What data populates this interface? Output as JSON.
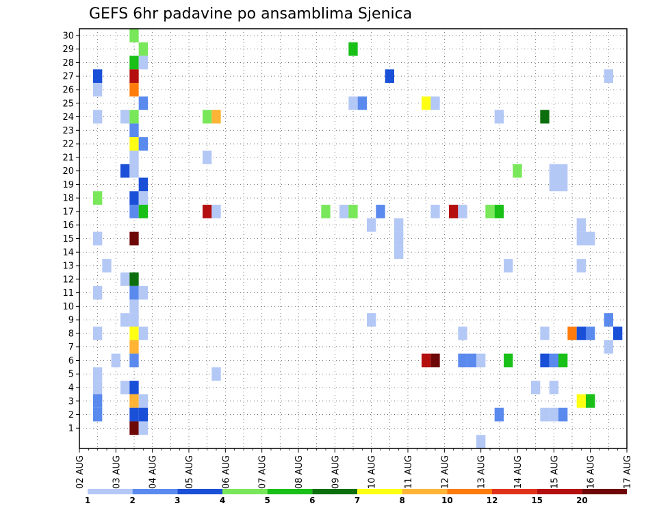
{
  "chart_data": {
    "type": "heatmap",
    "title": "GEFS 6hr padavine po ansamblima Sjenica",
    "xlabel": "",
    "ylabel": "",
    "y_range": [
      1,
      30
    ],
    "y_ticks": [
      "1",
      "2",
      "3",
      "4",
      "5",
      "6",
      "7",
      "8",
      "9",
      "10",
      "11",
      "12",
      "13",
      "14",
      "15",
      "16",
      "17",
      "18",
      "19",
      "20",
      "21",
      "22",
      "23",
      "24",
      "25",
      "26",
      "27",
      "28",
      "29",
      "30"
    ],
    "x_range": [
      0,
      15
    ],
    "x_ticks": [
      "02 AUG",
      "03 AUG",
      "04 AUG",
      "05 AUG",
      "06 AUG",
      "07 AUG",
      "08 AUG",
      "09 AUG",
      "10 AUG",
      "11 AUG",
      "12 AUG",
      "13 AUG",
      "14 AUG",
      "15 AUG",
      "16 AUG",
      "17 AUG"
    ],
    "x_step_per_day": 4,
    "grid": true,
    "colorbar": {
      "labels": [
        "1",
        "2",
        "3",
        "4",
        "5",
        "6",
        "7",
        "8",
        "10",
        "12",
        "15",
        "20"
      ],
      "colors": [
        "#b4c8f6",
        "#5a8aee",
        "#1a4fd8",
        "#78e85a",
        "#18c018",
        "#0c6e0c",
        "#ffff14",
        "#ffb436",
        "#ff7c0c",
        "#e0321a",
        "#b40e0e",
        "#6e0808"
      ]
    },
    "cells_description": "x = time step index (4 per day, 0 at 02 AUG 00Z), y = ensemble member, v = 6hr precipitation class",
    "cells": [
      {
        "x": 2,
        "y": 27,
        "v": 3
      },
      {
        "x": 2,
        "y": 26,
        "v": 1
      },
      {
        "x": 2,
        "y": 24,
        "v": 1
      },
      {
        "x": 2,
        "y": 18,
        "v": 4
      },
      {
        "x": 2,
        "y": 15,
        "v": 1
      },
      {
        "x": 2,
        "y": 11,
        "v": 1
      },
      {
        "x": 2,
        "y": 8,
        "v": 1
      },
      {
        "x": 2,
        "y": 5,
        "v": 1
      },
      {
        "x": 2,
        "y": 4,
        "v": 1
      },
      {
        "x": 2,
        "y": 3,
        "v": 2
      },
      {
        "x": 2,
        "y": 2,
        "v": 2
      },
      {
        "x": 3,
        "y": 13,
        "v": 1
      },
      {
        "x": 4,
        "y": 6,
        "v": 1
      },
      {
        "x": 5,
        "y": 24,
        "v": 1
      },
      {
        "x": 5,
        "y": 20,
        "v": 3
      },
      {
        "x": 5,
        "y": 12,
        "v": 1
      },
      {
        "x": 5,
        "y": 9,
        "v": 1
      },
      {
        "x": 5,
        "y": 4,
        "v": 1
      },
      {
        "x": 6,
        "y": 30,
        "v": 4
      },
      {
        "x": 6,
        "y": 28,
        "v": 5
      },
      {
        "x": 6,
        "y": 27,
        "v": 11
      },
      {
        "x": 6,
        "y": 26,
        "v": 9
      },
      {
        "x": 6,
        "y": 24,
        "v": 4
      },
      {
        "x": 6,
        "y": 23,
        "v": 2
      },
      {
        "x": 6,
        "y": 22,
        "v": 7
      },
      {
        "x": 6,
        "y": 21,
        "v": 1
      },
      {
        "x": 6,
        "y": 20,
        "v": 1
      },
      {
        "x": 6,
        "y": 18,
        "v": 3
      },
      {
        "x": 6,
        "y": 17,
        "v": 2
      },
      {
        "x": 6,
        "y": 15,
        "v": 12
      },
      {
        "x": 6,
        "y": 12,
        "v": 6
      },
      {
        "x": 6,
        "y": 11,
        "v": 2
      },
      {
        "x": 6,
        "y": 10,
        "v": 1
      },
      {
        "x": 6,
        "y": 9,
        "v": 1
      },
      {
        "x": 6,
        "y": 8,
        "v": 7
      },
      {
        "x": 6,
        "y": 7,
        "v": 8
      },
      {
        "x": 6,
        "y": 6,
        "v": 2
      },
      {
        "x": 6,
        "y": 4,
        "v": 3
      },
      {
        "x": 6,
        "y": 3,
        "v": 8
      },
      {
        "x": 6,
        "y": 2,
        "v": 3
      },
      {
        "x": 6,
        "y": 1,
        "v": 12
      },
      {
        "x": 7,
        "y": 29,
        "v": 4
      },
      {
        "x": 7,
        "y": 28,
        "v": 1
      },
      {
        "x": 7,
        "y": 25,
        "v": 2
      },
      {
        "x": 7,
        "y": 22,
        "v": 2
      },
      {
        "x": 7,
        "y": 19,
        "v": 3
      },
      {
        "x": 7,
        "y": 18,
        "v": 1
      },
      {
        "x": 7,
        "y": 17,
        "v": 5
      },
      {
        "x": 7,
        "y": 11,
        "v": 1
      },
      {
        "x": 7,
        "y": 8,
        "v": 1
      },
      {
        "x": 7,
        "y": 3,
        "v": 1
      },
      {
        "x": 7,
        "y": 2,
        "v": 3
      },
      {
        "x": 7,
        "y": 1,
        "v": 1
      },
      {
        "x": 14,
        "y": 24,
        "v": 4
      },
      {
        "x": 14,
        "y": 21,
        "v": 1
      },
      {
        "x": 14,
        "y": 17,
        "v": 11
      },
      {
        "x": 15,
        "y": 24,
        "v": 8
      },
      {
        "x": 15,
        "y": 17,
        "v": 1
      },
      {
        "x": 15,
        "y": 5,
        "v": 1
      },
      {
        "x": 27,
        "y": 17,
        "v": 4
      },
      {
        "x": 29,
        "y": 17,
        "v": 1
      },
      {
        "x": 30,
        "y": 29,
        "v": 5
      },
      {
        "x": 30,
        "y": 25,
        "v": 1
      },
      {
        "x": 30,
        "y": 17,
        "v": 4
      },
      {
        "x": 31,
        "y": 25,
        "v": 2
      },
      {
        "x": 32,
        "y": 16,
        "v": 1
      },
      {
        "x": 32,
        "y": 9,
        "v": 1
      },
      {
        "x": 33,
        "y": 17,
        "v": 2
      },
      {
        "x": 34,
        "y": 27,
        "v": 3
      },
      {
        "x": 35,
        "y": 16,
        "v": 1
      },
      {
        "x": 35,
        "y": 15,
        "v": 1
      },
      {
        "x": 35,
        "y": 14,
        "v": 1
      },
      {
        "x": 38,
        "y": 25,
        "v": 7
      },
      {
        "x": 38,
        "y": 6,
        "v": 11
      },
      {
        "x": 39,
        "y": 25,
        "v": 1
      },
      {
        "x": 39,
        "y": 17,
        "v": 1
      },
      {
        "x": 39,
        "y": 6,
        "v": 12
      },
      {
        "x": 41,
        "y": 17,
        "v": 11
      },
      {
        "x": 42,
        "y": 17,
        "v": 1
      },
      {
        "x": 42,
        "y": 8,
        "v": 1
      },
      {
        "x": 42,
        "y": 6,
        "v": 2
      },
      {
        "x": 43,
        "y": 6,
        "v": 2
      },
      {
        "x": 44,
        "y": 6,
        "v": 1
      },
      {
        "x": 44,
        "y": 0,
        "v": 1
      },
      {
        "x": 45,
        "y": 17,
        "v": 4
      },
      {
        "x": 46,
        "y": 24,
        "v": 1
      },
      {
        "x": 46,
        "y": 17,
        "v": 5
      },
      {
        "x": 46,
        "y": 2,
        "v": 2
      },
      {
        "x": 47,
        "y": 13,
        "v": 1
      },
      {
        "x": 47,
        "y": 6,
        "v": 5
      },
      {
        "x": 48,
        "y": 20,
        "v": 4
      },
      {
        "x": 50,
        "y": 4,
        "v": 1
      },
      {
        "x": 51,
        "y": 24,
        "v": 6
      },
      {
        "x": 51,
        "y": 8,
        "v": 1
      },
      {
        "x": 51,
        "y": 6,
        "v": 3
      },
      {
        "x": 51,
        "y": 2,
        "v": 1
      },
      {
        "x": 52,
        "y": 20,
        "v": 1
      },
      {
        "x": 52,
        "y": 19,
        "v": 1
      },
      {
        "x": 52,
        "y": 6,
        "v": 2
      },
      {
        "x": 52,
        "y": 4,
        "v": 1
      },
      {
        "x": 52,
        "y": 2,
        "v": 1
      },
      {
        "x": 53,
        "y": 20,
        "v": 1
      },
      {
        "x": 53,
        "y": 19,
        "v": 1
      },
      {
        "x": 53,
        "y": 6,
        "v": 5
      },
      {
        "x": 53,
        "y": 2,
        "v": 2
      },
      {
        "x": 54,
        "y": 8,
        "v": 9
      },
      {
        "x": 55,
        "y": 16,
        "v": 1
      },
      {
        "x": 55,
        "y": 15,
        "v": 1
      },
      {
        "x": 55,
        "y": 13,
        "v": 1
      },
      {
        "x": 55,
        "y": 8,
        "v": 3
      },
      {
        "x": 55,
        "y": 3,
        "v": 7
      },
      {
        "x": 56,
        "y": 15,
        "v": 1
      },
      {
        "x": 56,
        "y": 8,
        "v": 2
      },
      {
        "x": 56,
        "y": 3,
        "v": 5
      },
      {
        "x": 58,
        "y": 27,
        "v": 1
      },
      {
        "x": 58,
        "y": 9,
        "v": 2
      },
      {
        "x": 58,
        "y": 7,
        "v": 1
      },
      {
        "x": 59,
        "y": 8,
        "v": 3
      }
    ]
  }
}
